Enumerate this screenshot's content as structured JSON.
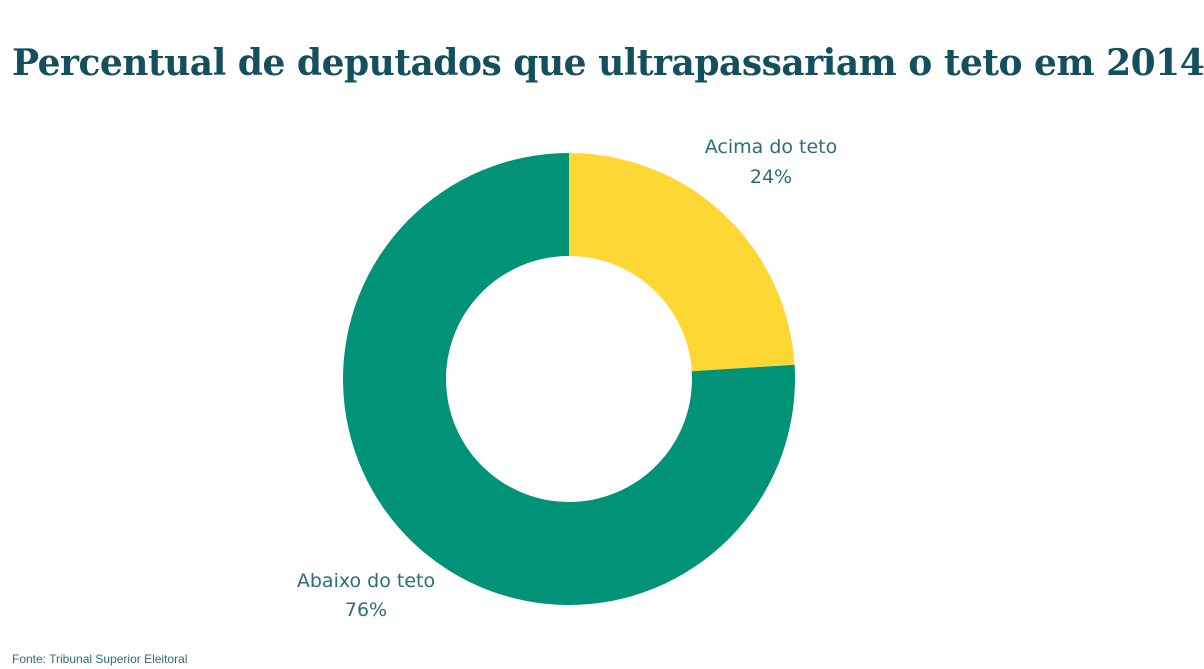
{
  "chart_data": {
    "type": "pie",
    "title": "Percentual de deputados que ultrapassariam o teto em 2014",
    "slices": [
      {
        "label": "Acima do teto",
        "value": 24,
        "value_label": "24%",
        "color": "#fdd835"
      },
      {
        "label": "Abaixo do teto",
        "value": 76,
        "value_label": "76%",
        "color": "#009377"
      }
    ],
    "donut": true
  },
  "source": "Fonte: Tribunal Superior Eleitoral"
}
